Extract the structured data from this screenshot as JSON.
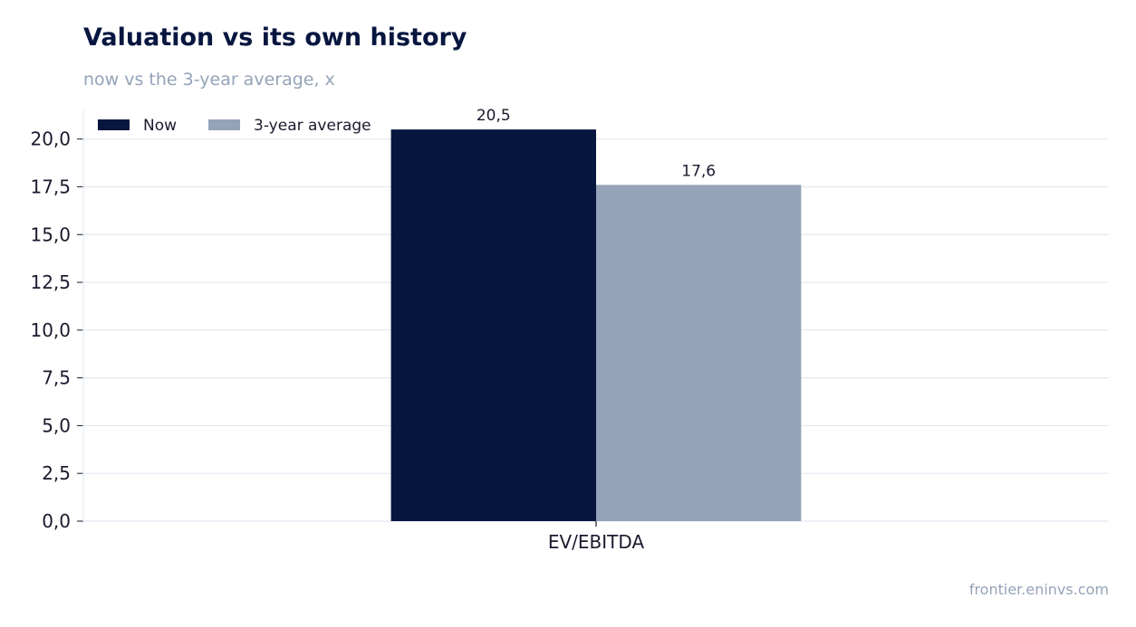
{
  "chart_data": {
    "type": "bar",
    "title": "Valuation vs its own history",
    "subtitle": "now vs the 3-year average, x",
    "categories": [
      "EV/EBITDA"
    ],
    "series": [
      {
        "name": "Now",
        "values": [
          20.5
        ],
        "color": "#06163f",
        "labels": [
          "20,5"
        ]
      },
      {
        "name": "3-year average",
        "values": [
          17.6
        ],
        "color": "#94a3b8",
        "labels": [
          "17,6"
        ]
      }
    ],
    "xlabel": "",
    "ylabel": "",
    "ylim": [
      0,
      21.5
    ],
    "yticks": [
      0,
      2.5,
      5,
      7.5,
      10,
      12.5,
      15,
      17.5,
      20
    ],
    "ytick_labels": [
      "0,0",
      "2,5",
      "5,0",
      "7,5",
      "10,0",
      "12,5",
      "15,0",
      "17,5",
      "20,0"
    ],
    "grid": true,
    "legend_position": "top-left"
  },
  "footer": {
    "source": "frontier.eninvs.com"
  },
  "colors": {
    "title": "#06163f",
    "muted": "#94a3b8",
    "grid": "#e2e8f0",
    "axis": "#1a1a2e"
  }
}
